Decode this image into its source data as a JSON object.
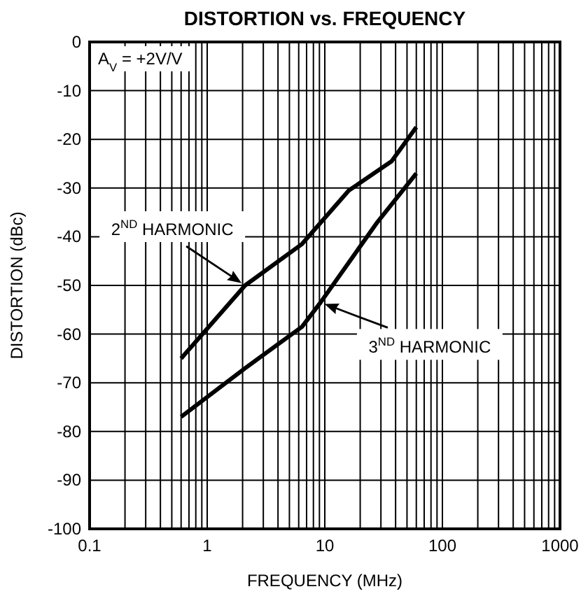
{
  "chart_data": {
    "type": "line",
    "title": "DISTORTION vs. FREQUENCY",
    "xlabel": "FREQUENCY (MHz)",
    "ylabel": "DISTORTION (dBc)",
    "log": "x",
    "grid": true,
    "line_style": "solid",
    "marker": "none",
    "xlim": [
      0.1,
      1000
    ],
    "xticks": [
      0.1,
      1,
      10,
      100,
      1000
    ],
    "ylim": [
      -100,
      0
    ],
    "yticks": [
      -100,
      -90,
      -80,
      -70,
      -60,
      -50,
      -40,
      -30,
      -20,
      -10,
      0
    ],
    "annotations": [
      "A$_{V}$ = +2V/V"
    ],
    "series": [
      {
        "name": "2$^{ND}$ HARMONIC",
        "color": "#000000",
        "x": [
          0.6,
          2.1,
          6.4,
          16,
          37,
          60
        ],
        "values": [
          -65,
          -50,
          -41.5,
          -30.5,
          -24.5,
          -17.5
        ]
      },
      {
        "name": "3$^{ND}$ HARMONIC",
        "color": "#000000",
        "x": [
          0.6,
          2.1,
          6.4,
          9.2,
          28,
          60
        ],
        "values": [
          -77,
          -67,
          -58.5,
          -53.5,
          -37,
          -27
        ]
      }
    ]
  }
}
